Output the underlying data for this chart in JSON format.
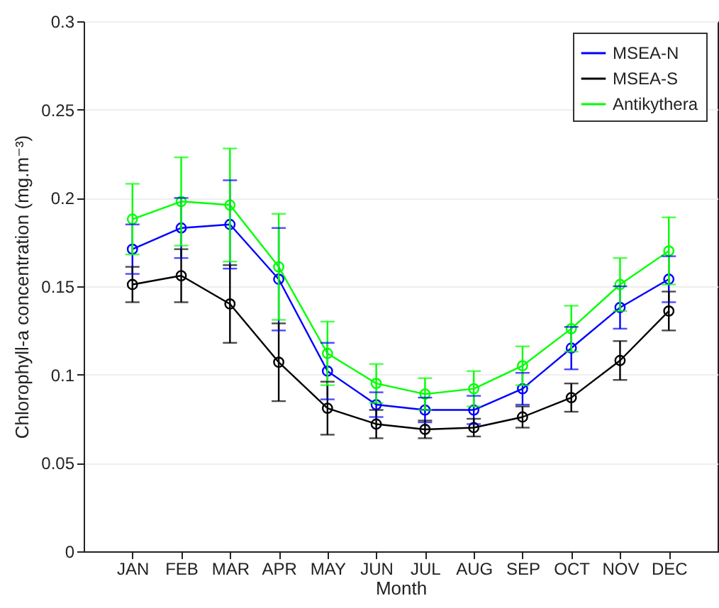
{
  "chart_data": {
    "type": "line",
    "xlabel": "Month",
    "ylabel": "Chlorophyll-a concentration (mg.m⁻³)",
    "categories": [
      "JAN",
      "FEB",
      "MAR",
      "APR",
      "MAY",
      "JUN",
      "JUL",
      "AUG",
      "SEP",
      "OCT",
      "NOV",
      "DEC"
    ],
    "series": [
      {
        "name": "MSEA-N",
        "color": "#0000ff",
        "values": [
          0.171,
          0.183,
          0.185,
          0.154,
          0.102,
          0.083,
          0.08,
          0.08,
          0.092,
          0.115,
          0.138,
          0.154
        ],
        "errors": [
          0.014,
          0.017,
          0.025,
          0.029,
          0.016,
          0.007,
          0.007,
          0.008,
          0.009,
          0.012,
          0.012,
          0.013
        ]
      },
      {
        "name": "MSEA-S",
        "color": "#000000",
        "values": [
          0.151,
          0.156,
          0.14,
          0.107,
          0.081,
          0.072,
          0.069,
          0.07,
          0.076,
          0.087,
          0.108,
          0.136
        ],
        "errors": [
          0.01,
          0.015,
          0.022,
          0.022,
          0.015,
          0.008,
          0.005,
          0.005,
          0.006,
          0.008,
          0.011,
          0.011
        ]
      },
      {
        "name": "Antikythera",
        "color": "#00ff00",
        "values": [
          0.188,
          0.198,
          0.196,
          0.161,
          0.112,
          0.095,
          0.089,
          0.092,
          0.105,
          0.126,
          0.151,
          0.17
        ],
        "errors": [
          0.02,
          0.025,
          0.032,
          0.03,
          0.018,
          0.011,
          0.009,
          0.01,
          0.011,
          0.013,
          0.015,
          0.019
        ]
      }
    ],
    "ylim": [
      0,
      0.3
    ],
    "yticks": [
      0,
      0.05,
      0.1,
      0.15,
      0.2,
      0.25,
      0.3
    ],
    "grid": "y",
    "legend": "top right",
    "marker": "circle",
    "line_style": "solid"
  }
}
